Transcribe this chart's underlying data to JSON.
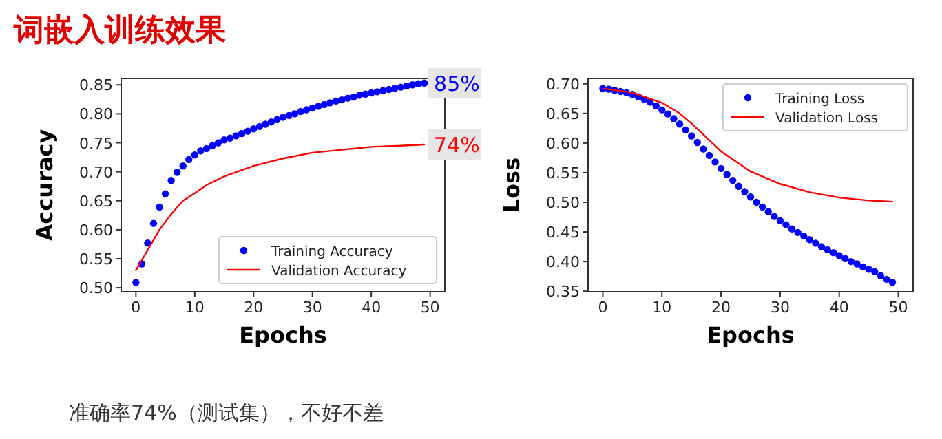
{
  "chart_data": [
    {
      "type": "line",
      "title": "词嵌入训练效果",
      "annotations": [
        "准确率74%（测试集），不好不差",
        {
          "text": "85%",
          "x": 49,
          "y": 0.853
        },
        {
          "text": "74%",
          "x": 49,
          "y": 0.747
        }
      ],
      "xlabel": "Epochs",
      "ylabel": "Accuracy",
      "xlim": [
        -2.5,
        52.5
      ],
      "ylim": [
        0.493,
        0.861
      ],
      "xticks": [
        0,
        10,
        20,
        30,
        40,
        50
      ],
      "yticks": [
        {
          "value": 0.5,
          "label": "0.50"
        },
        {
          "value": 0.55,
          "label": "0.55"
        },
        {
          "value": 0.6,
          "label": "0.60"
        },
        {
          "value": 0.65,
          "label": "0.65"
        },
        {
          "value": 0.7,
          "label": "0.70"
        },
        {
          "value": 0.75,
          "label": "0.75"
        },
        {
          "value": 0.8,
          "label": "0.80"
        },
        {
          "value": 0.85,
          "label": "0.85"
        }
      ],
      "legend": "bottom right",
      "series": [
        {
          "name": "Training Accuracy",
          "type": "scatter",
          "marker": "circle",
          "color": "#0000ff",
          "x": [
            0,
            1,
            2,
            3,
            4,
            5,
            6,
            7,
            8,
            9,
            10,
            11,
            12,
            13,
            14,
            15,
            16,
            17,
            18,
            19,
            20,
            21,
            22,
            23,
            24,
            25,
            26,
            27,
            28,
            29,
            30,
            31,
            32,
            33,
            34,
            35,
            36,
            37,
            38,
            39,
            40,
            41,
            42,
            43,
            44,
            45,
            46,
            47,
            48,
            49
          ],
          "values": [
            0.509,
            0.541,
            0.577,
            0.611,
            0.639,
            0.662,
            0.685,
            0.699,
            0.71,
            0.721,
            0.729,
            0.736,
            0.74,
            0.745,
            0.75,
            0.755,
            0.758,
            0.762,
            0.766,
            0.77,
            0.774,
            0.778,
            0.782,
            0.786,
            0.79,
            0.794,
            0.797,
            0.8,
            0.804,
            0.807,
            0.81,
            0.813,
            0.816,
            0.819,
            0.822,
            0.824,
            0.827,
            0.829,
            0.832,
            0.834,
            0.836,
            0.838,
            0.84,
            0.842,
            0.844,
            0.846,
            0.848,
            0.85,
            0.852,
            0.853
          ]
        },
        {
          "name": "Validation Accuracy",
          "line_style": "solid",
          "color": "#ff0000",
          "x": [
            0,
            2,
            4,
            6,
            8,
            10,
            12,
            15,
            20,
            25,
            30,
            35,
            40,
            45,
            49
          ],
          "values": [
            0.53,
            0.565,
            0.6,
            0.627,
            0.65,
            0.663,
            0.677,
            0.692,
            0.71,
            0.723,
            0.733,
            0.738,
            0.743,
            0.745,
            0.747
          ]
        }
      ]
    },
    {
      "type": "line",
      "xlabel": "Epochs",
      "ylabel": "Loss",
      "xlim": [
        -2.5,
        52.5
      ],
      "ylim": [
        0.349,
        0.709
      ],
      "xticks": [
        0,
        10,
        20,
        30,
        40,
        50
      ],
      "yticks": [
        {
          "value": 0.35,
          "label": "0.35"
        },
        {
          "value": 0.4,
          "label": "0.40"
        },
        {
          "value": 0.45,
          "label": "0.45"
        },
        {
          "value": 0.5,
          "label": "0.50"
        },
        {
          "value": 0.55,
          "label": "0.55"
        },
        {
          "value": 0.6,
          "label": "0.60"
        },
        {
          "value": 0.65,
          "label": "0.65"
        },
        {
          "value": 0.7,
          "label": "0.70"
        }
      ],
      "legend": "top right",
      "series": [
        {
          "name": "Training Loss",
          "type": "scatter",
          "marker": "circle",
          "color": "#0000ff",
          "x": [
            0,
            1,
            2,
            3,
            4,
            5,
            6,
            7,
            8,
            9,
            10,
            11,
            12,
            13,
            14,
            15,
            16,
            17,
            18,
            19,
            20,
            21,
            22,
            23,
            24,
            25,
            26,
            27,
            28,
            29,
            30,
            31,
            32,
            33,
            34,
            35,
            36,
            37,
            38,
            39,
            40,
            41,
            42,
            43,
            44,
            45,
            46,
            47,
            48,
            49
          ],
          "values": [
            0.692,
            0.691,
            0.689,
            0.687,
            0.685,
            0.682,
            0.678,
            0.674,
            0.669,
            0.663,
            0.656,
            0.649,
            0.641,
            0.632,
            0.622,
            0.612,
            0.601,
            0.59,
            0.579,
            0.568,
            0.557,
            0.547,
            0.537,
            0.527,
            0.518,
            0.509,
            0.5,
            0.492,
            0.484,
            0.476,
            0.469,
            0.462,
            0.455,
            0.449,
            0.443,
            0.437,
            0.431,
            0.425,
            0.42,
            0.415,
            0.41,
            0.405,
            0.4,
            0.396,
            0.391,
            0.387,
            0.383,
            0.376,
            0.37,
            0.365
          ]
        },
        {
          "name": "Validation Loss",
          "line_style": "solid",
          "color": "#ff0000",
          "x": [
            0,
            5,
            10,
            13,
            15,
            18,
            20,
            25,
            30,
            35,
            40,
            45,
            49
          ],
          "values": [
            0.692,
            0.685,
            0.668,
            0.65,
            0.633,
            0.605,
            0.586,
            0.552,
            0.531,
            0.517,
            0.508,
            0.503,
            0.501
          ]
        }
      ]
    }
  ]
}
